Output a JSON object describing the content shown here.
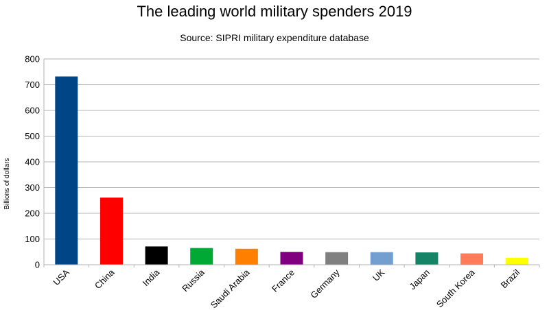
{
  "chart_data": {
    "type": "bar",
    "title": "The leading world military spenders 2019",
    "subtitle": "Source: SIPRI military expenditure database",
    "xlabel": "",
    "ylabel": "Billions of dollars",
    "ylim": [
      0,
      800
    ],
    "yticks": [
      0,
      100,
      200,
      300,
      400,
      500,
      600,
      700,
      800
    ],
    "grid": true,
    "categories": [
      "USA",
      "China",
      "India",
      "Russia",
      "Saudi Arabia",
      "France",
      "Germany",
      "UK",
      "Japan",
      "South Korea",
      "Brazil"
    ],
    "values": [
      732,
      261,
      71,
      65,
      62,
      50,
      49,
      49,
      48,
      44,
      27
    ],
    "colors": [
      "#004586",
      "#ff0000",
      "#000000",
      "#00a933",
      "#ff8000",
      "#800080",
      "#808080",
      "#729fcf",
      "#158466",
      "#ff7b59",
      "#ffff00"
    ]
  }
}
